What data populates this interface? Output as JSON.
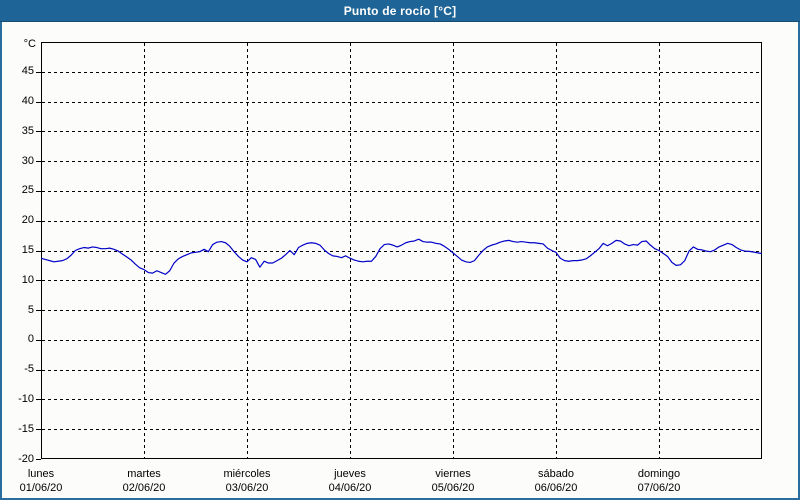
{
  "window": {
    "title": "Punto de rocío [°C]"
  },
  "colors": {
    "titlebar_bg": "#1f6496",
    "window_border": "#2b6d9e",
    "background": "#fcfdfa",
    "series_line": "#0000c8",
    "grid": "#000000",
    "text": "#000000"
  },
  "chart_data": {
    "type": "line",
    "title": "Punto de rocío [°C]",
    "ylabel": "°C",
    "ylim": [
      -20,
      50
    ],
    "yticks": [
      45,
      40,
      35,
      30,
      25,
      20,
      15,
      10,
      5,
      0,
      -5,
      -10,
      -15,
      -20
    ],
    "grid": true,
    "legend": "none",
    "x_axis": {
      "span_days": 7,
      "days": [
        {
          "name": "lunes",
          "date": "01/06/20"
        },
        {
          "name": "martes",
          "date": "02/06/20"
        },
        {
          "name": "miércoles",
          "date": "03/06/20"
        },
        {
          "name": "jueves",
          "date": "04/06/20"
        },
        {
          "name": "viernes",
          "date": "05/06/20"
        },
        {
          "name": "sábado",
          "date": "06/06/20"
        },
        {
          "name": "domingo",
          "date": "07/06/20"
        }
      ]
    },
    "series": [
      {
        "name": "Punto de rocío",
        "unit": "°C",
        "sampling": "hourly",
        "values": [
          13.7,
          13.5,
          13.3,
          13.1,
          13.2,
          13.3,
          13.6,
          14.2,
          15.0,
          15.3,
          15.5,
          15.4,
          15.6,
          15.5,
          15.3,
          15.3,
          15.4,
          15.2,
          14.9,
          14.4,
          13.9,
          13.4,
          12.7,
          12.1,
          11.8,
          11.3,
          11.2,
          11.6,
          11.3,
          11.0,
          11.6,
          12.9,
          13.6,
          14.0,
          14.3,
          14.6,
          14.7,
          14.8,
          15.2,
          14.8,
          16.0,
          16.4,
          16.5,
          16.3,
          15.7,
          14.8,
          14.0,
          13.4,
          13.1,
          13.8,
          13.5,
          12.2,
          13.2,
          12.9,
          12.9,
          13.3,
          13.7,
          14.3,
          15.0,
          14.3,
          15.5,
          15.9,
          16.2,
          16.3,
          16.2,
          15.9,
          15.1,
          14.5,
          14.1,
          14.0,
          13.8,
          14.1,
          13.7,
          13.4,
          13.2,
          13.1,
          13.2,
          13.2,
          14.0,
          15.3,
          16.0,
          16.1,
          15.9,
          15.6,
          15.9,
          16.3,
          16.5,
          16.6,
          16.9,
          16.5,
          16.4,
          16.4,
          16.2,
          16.1,
          15.7,
          15.2,
          14.6,
          14.0,
          13.4,
          13.1,
          13.0,
          13.3,
          14.2,
          15.0,
          15.6,
          15.9,
          16.1,
          16.4,
          16.6,
          16.7,
          16.5,
          16.4,
          16.5,
          16.4,
          16.3,
          16.3,
          16.2,
          16.1,
          15.4,
          15.0,
          14.7,
          13.7,
          13.3,
          13.2,
          13.3,
          13.3,
          13.4,
          13.6,
          14.1,
          14.7,
          15.3,
          16.2,
          15.8,
          16.2,
          16.7,
          16.6,
          16.1,
          15.8,
          16.0,
          15.9,
          16.5,
          16.6,
          15.9,
          15.3,
          15.0,
          14.5,
          14.0,
          13.0,
          12.5,
          12.6,
          13.3,
          14.9,
          15.6,
          15.2,
          15.1,
          14.9,
          14.8,
          15.1,
          15.6,
          15.9,
          16.2,
          16.0,
          15.5,
          15.1,
          14.9,
          14.85,
          14.75,
          14.6,
          14.5
        ]
      }
    ]
  }
}
